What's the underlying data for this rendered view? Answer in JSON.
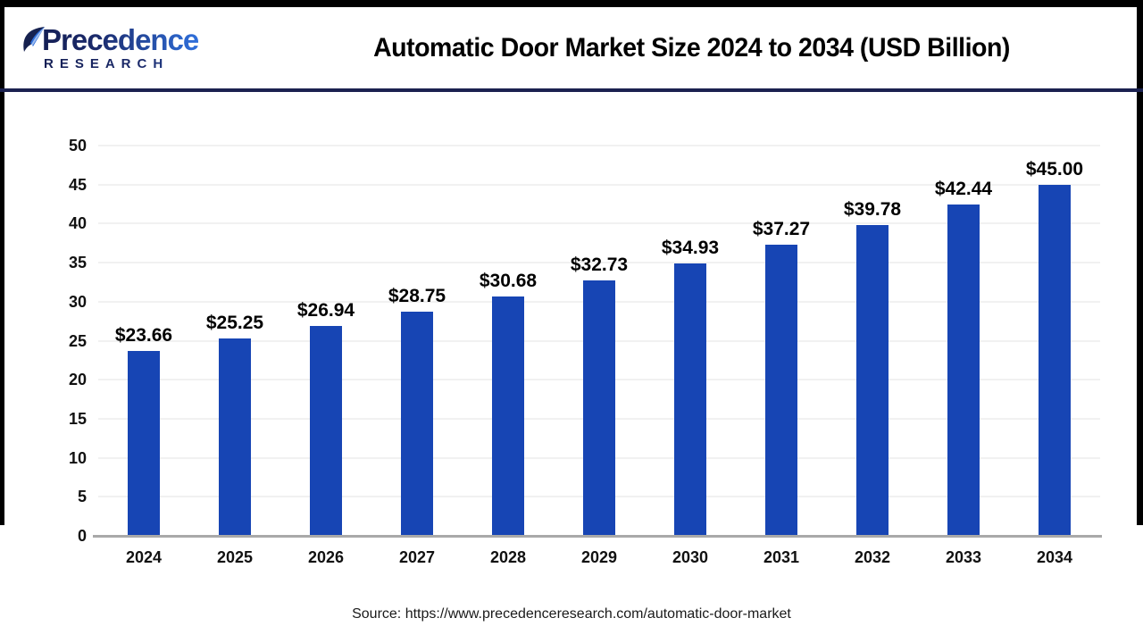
{
  "header": {
    "logo": {
      "line1": "Precedence",
      "line2": "RESEARCH"
    },
    "title": "Automatic Door Market Size 2024 to 2034 (USD Billion)"
  },
  "chart_data": {
    "type": "bar",
    "title": "Automatic Door Market Size 2024 to 2034 (USD Billion)",
    "categories": [
      "2024",
      "2025",
      "2026",
      "2027",
      "2028",
      "2029",
      "2030",
      "2031",
      "2032",
      "2033",
      "2034"
    ],
    "values": [
      23.66,
      25.25,
      26.94,
      28.75,
      30.68,
      32.73,
      34.93,
      37.27,
      39.78,
      42.44,
      45.0
    ],
    "value_labels": [
      "$23.66",
      "$25.25",
      "$26.94",
      "$28.75",
      "$30.68",
      "$32.73",
      "$34.93",
      "$37.27",
      "$39.78",
      "$42.44",
      "$45.00"
    ],
    "xlabel": "",
    "ylabel": "",
    "ylim": [
      0,
      50
    ],
    "ytick_step": 5,
    "grid": true,
    "legend": "none",
    "bar_color": "#1745b4"
  },
  "footer": {
    "source": "Source: https://www.precedenceresearch.com/automatic-door-market"
  },
  "colors": {
    "bar": "#1745b4",
    "divider_navy": "#1b2150",
    "frame_black": "#000000",
    "gridline": "#f1f1f1",
    "baseline_gray": "#a9a9a9",
    "logo_navy": "#1b2a6b",
    "logo_blue": "#2f6fdb"
  }
}
